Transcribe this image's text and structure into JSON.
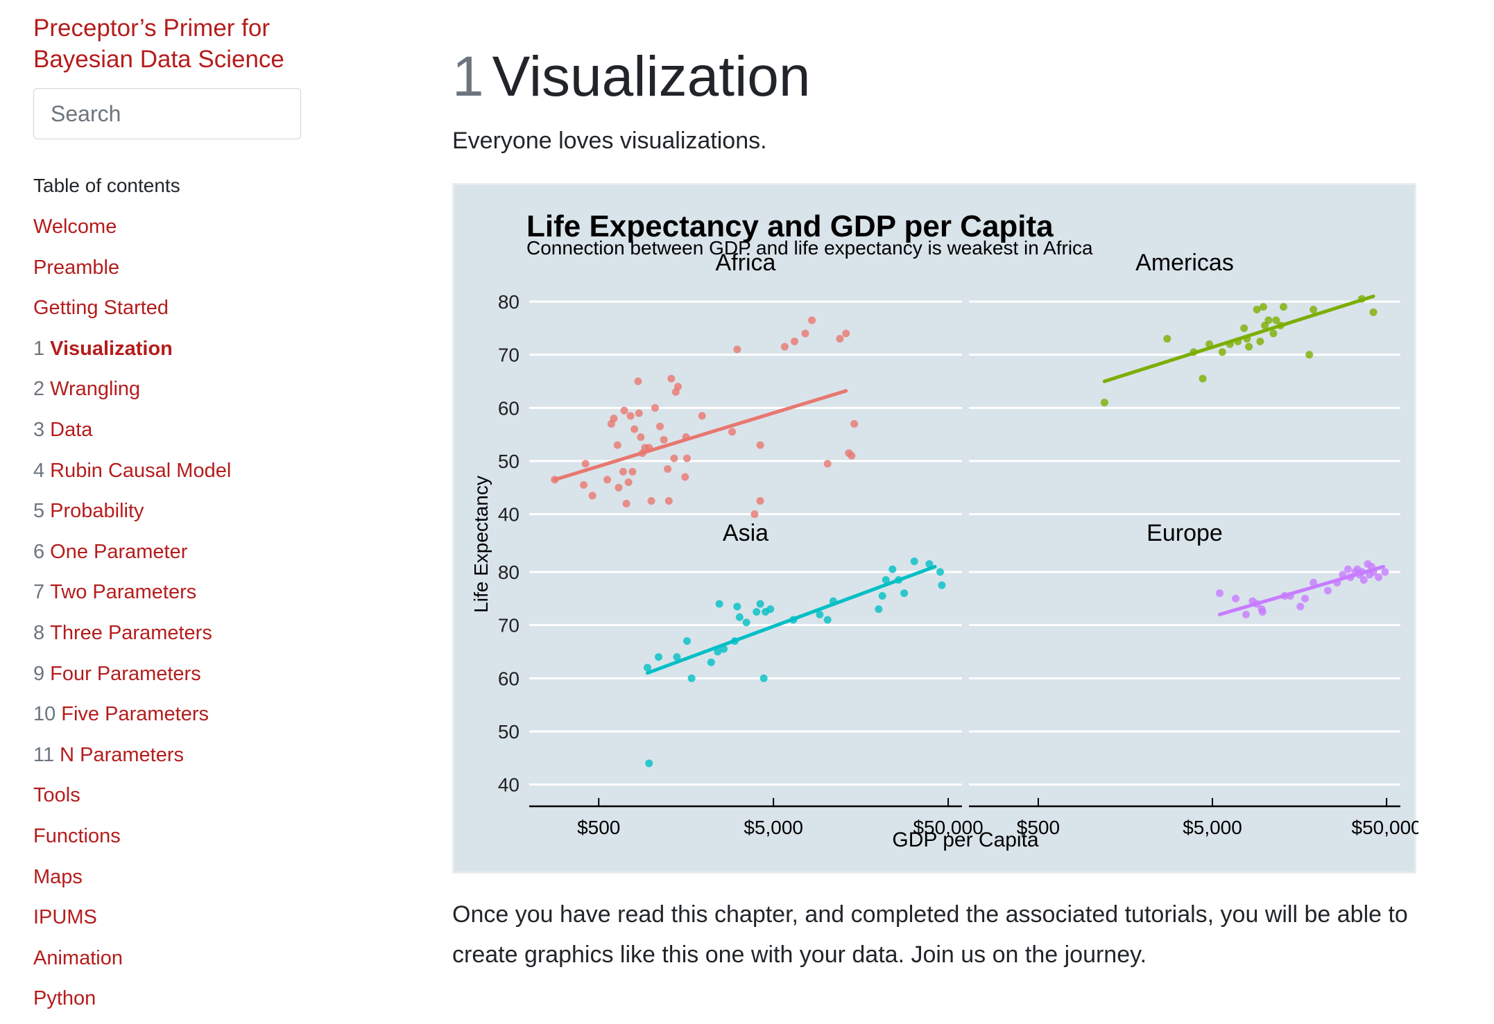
{
  "sidebar": {
    "book_title": "Preceptor’s Primer for Bayesian Data Science",
    "search_placeholder": "Search",
    "toc_heading": "Table of contents",
    "items": [
      {
        "num": "",
        "label": "Welcome",
        "active": false
      },
      {
        "num": "",
        "label": "Preamble",
        "active": false
      },
      {
        "num": "",
        "label": "Getting Started",
        "active": false
      },
      {
        "num": "1",
        "label": "Visualization",
        "active": true
      },
      {
        "num": "2",
        "label": "Wrangling",
        "active": false
      },
      {
        "num": "3",
        "label": "Data",
        "active": false
      },
      {
        "num": "4",
        "label": "Rubin Causal Model",
        "active": false
      },
      {
        "num": "5",
        "label": "Probability",
        "active": false
      },
      {
        "num": "6",
        "label": "One Parameter",
        "active": false
      },
      {
        "num": "7",
        "label": "Two Parameters",
        "active": false
      },
      {
        "num": "8",
        "label": "Three Parameters",
        "active": false
      },
      {
        "num": "9",
        "label": "Four Parameters",
        "active": false
      },
      {
        "num": "10",
        "label": "Five Parameters",
        "active": false
      },
      {
        "num": "11",
        "label": "N Parameters",
        "active": false
      },
      {
        "num": "",
        "label": "Tools",
        "active": false
      },
      {
        "num": "",
        "label": "Functions",
        "active": false
      },
      {
        "num": "",
        "label": "Maps",
        "active": false
      },
      {
        "num": "",
        "label": "IPUMS",
        "active": false
      },
      {
        "num": "",
        "label": "Animation",
        "active": false
      },
      {
        "num": "",
        "label": "Python",
        "active": false
      }
    ]
  },
  "main": {
    "chapter_number": "1",
    "chapter_title": "Visualization",
    "intro": "Everyone loves visualizations.",
    "outro": "Once you have read this chapter, and completed the associated tutorials, you will be able to create graphics like this one with your data. Join us on the journey."
  },
  "chart_data": {
    "type": "scatter",
    "title": "Life Expectancy and GDP per Capita",
    "subtitle": "Connection between GDP and life expectancy is weakest in Africa",
    "xlabel": "GDP per Capita",
    "ylabel": "Life Expectancy",
    "x_scale": "log10",
    "xlim": [
      200,
      60000
    ],
    "ylim": [
      38,
      83
    ],
    "x_ticks": [
      500,
      5000,
      50000
    ],
    "x_tick_labels": [
      "$500",
      "$5,000",
      "$50,000"
    ],
    "y_ticks": [
      40,
      50,
      60,
      70,
      80
    ],
    "grid": true,
    "legend": "none",
    "background": "#d9e3ea",
    "facets": [
      {
        "name": "Africa",
        "color": "#e8776f",
        "trend": {
          "x": [
            280,
            13000
          ],
          "y": [
            46.5,
            63.2
          ]
        },
        "points": [
          [
            280,
            46.5
          ],
          [
            420,
            49.5
          ],
          [
            410,
            45.5
          ],
          [
            460,
            43.5
          ],
          [
            560,
            46.5
          ],
          [
            590,
            57
          ],
          [
            610,
            58
          ],
          [
            640,
            53
          ],
          [
            650,
            45
          ],
          [
            690,
            48
          ],
          [
            700,
            59.5
          ],
          [
            720,
            42
          ],
          [
            740,
            46
          ],
          [
            760,
            58.5
          ],
          [
            780,
            48
          ],
          [
            800,
            56
          ],
          [
            840,
            65
          ],
          [
            850,
            59
          ],
          [
            870,
            54.5
          ],
          [
            890,
            51.5
          ],
          [
            920,
            52.5
          ],
          [
            970,
            52.5
          ],
          [
            1000,
            42.5
          ],
          [
            1050,
            60
          ],
          [
            1120,
            56.5
          ],
          [
            1180,
            54
          ],
          [
            1240,
            48.5
          ],
          [
            1260,
            42.5
          ],
          [
            1300,
            65.5
          ],
          [
            1350,
            50.5
          ],
          [
            1380,
            63
          ],
          [
            1420,
            64
          ],
          [
            1560,
            47
          ],
          [
            1580,
            54.5
          ],
          [
            1600,
            50.5
          ],
          [
            1950,
            58.5
          ],
          [
            2900,
            55.5
          ],
          [
            3100,
            71
          ],
          [
            3900,
            40
          ],
          [
            4200,
            42.5
          ],
          [
            4200,
            53
          ],
          [
            5800,
            71.5
          ],
          [
            6600,
            72.5
          ],
          [
            7600,
            74
          ],
          [
            8300,
            76.5
          ],
          [
            10200,
            49.5
          ],
          [
            12000,
            73
          ],
          [
            13000,
            74
          ],
          [
            13500,
            51.5
          ],
          [
            14000,
            51
          ],
          [
            14500,
            57
          ]
        ]
      },
      {
        "name": "Americas",
        "color": "#7cae00",
        "trend": {
          "x": [
            1200,
            42000
          ],
          "y": [
            65,
            81
          ]
        },
        "points": [
          [
            1200,
            61
          ],
          [
            2750,
            73
          ],
          [
            3900,
            70.5
          ],
          [
            4400,
            65.5
          ],
          [
            4800,
            72
          ],
          [
            5700,
            70.5
          ],
          [
            6300,
            72
          ],
          [
            7000,
            72.5
          ],
          [
            7600,
            75
          ],
          [
            7900,
            73
          ],
          [
            8100,
            71.5
          ],
          [
            9000,
            78.5
          ],
          [
            9400,
            72.5
          ],
          [
            9800,
            79
          ],
          [
            10000,
            75.5
          ],
          [
            10500,
            76.5
          ],
          [
            11200,
            74
          ],
          [
            11600,
            76.5
          ],
          [
            12300,
            75.5
          ],
          [
            12800,
            79
          ],
          [
            18000,
            70
          ],
          [
            19000,
            78.5
          ],
          [
            36000,
            80.5
          ],
          [
            42000,
            78
          ]
        ]
      },
      {
        "name": "Asia",
        "color": "#00bfc4",
        "trend": {
          "x": [
            950,
            42000
          ],
          "y": [
            61,
            81
          ]
        },
        "points": [
          [
            950,
            62
          ],
          [
            970,
            44
          ],
          [
            1100,
            64
          ],
          [
            1400,
            64
          ],
          [
            1600,
            67
          ],
          [
            1700,
            60
          ],
          [
            2200,
            63
          ],
          [
            2400,
            65
          ],
          [
            2450,
            74
          ],
          [
            2600,
            65.5
          ],
          [
            3000,
            67
          ],
          [
            3100,
            73.5
          ],
          [
            3200,
            71.5
          ],
          [
            3500,
            70.5
          ],
          [
            4000,
            72.5
          ],
          [
            4200,
            74
          ],
          [
            4400,
            60
          ],
          [
            4500,
            72.5
          ],
          [
            4800,
            73
          ],
          [
            6500,
            71
          ],
          [
            9200,
            72
          ],
          [
            10200,
            71
          ],
          [
            11000,
            74.5
          ],
          [
            20000,
            73
          ],
          [
            21000,
            75.5
          ],
          [
            22000,
            78.5
          ],
          [
            24000,
            80.5
          ],
          [
            26000,
            78.5
          ],
          [
            28000,
            76
          ],
          [
            32000,
            82
          ],
          [
            39000,
            81.5
          ],
          [
            45000,
            80
          ],
          [
            46000,
            77.5
          ]
        ]
      },
      {
        "name": "Europe",
        "color": "#c77cff",
        "trend": {
          "x": [
            5500,
            48000
          ],
          "y": [
            72,
            81
          ]
        },
        "points": [
          [
            5500,
            76
          ],
          [
            6800,
            75
          ],
          [
            7800,
            72
          ],
          [
            8500,
            74.5
          ],
          [
            9000,
            74
          ],
          [
            9600,
            73
          ],
          [
            9700,
            72.5
          ],
          [
            13000,
            75.5
          ],
          [
            14000,
            75.5
          ],
          [
            16000,
            73.5
          ],
          [
            17000,
            75
          ],
          [
            19000,
            78
          ],
          [
            23000,
            76.5
          ],
          [
            26000,
            78
          ],
          [
            28000,
            79.5
          ],
          [
            30000,
            80.5
          ],
          [
            31000,
            79
          ],
          [
            33000,
            80
          ],
          [
            34000,
            80.5
          ],
          [
            35000,
            79.5
          ],
          [
            36000,
            80
          ],
          [
            37000,
            78.5
          ],
          [
            39000,
            81.5
          ],
          [
            40000,
            79.5
          ],
          [
            41000,
            81
          ],
          [
            42000,
            80
          ],
          [
            45000,
            79
          ],
          [
            49000,
            80
          ]
        ]
      }
    ]
  }
}
